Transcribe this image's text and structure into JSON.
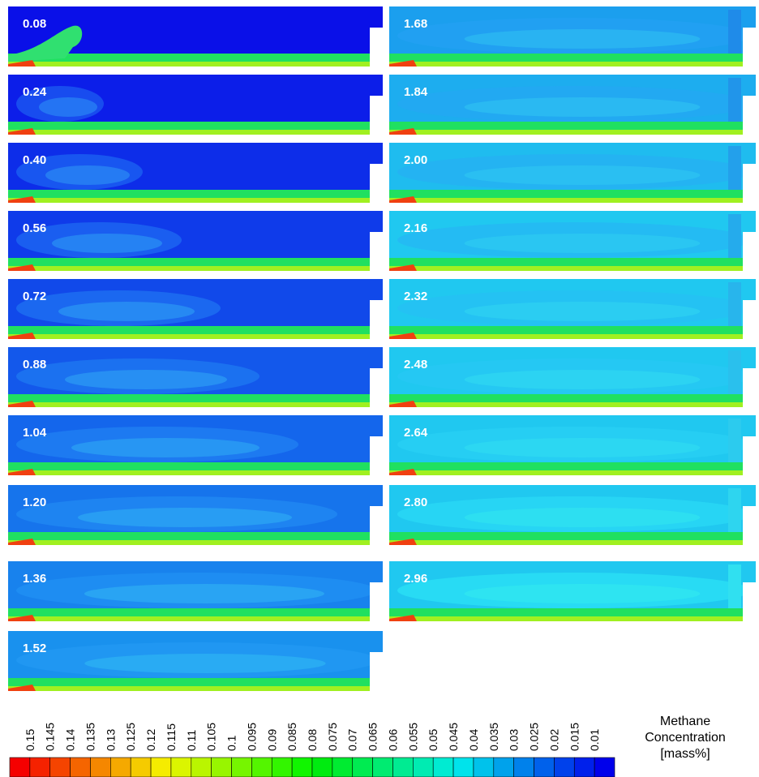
{
  "panels": [
    {
      "time": "0.08"
    },
    {
      "time": "0.24"
    },
    {
      "time": "0.40"
    },
    {
      "time": "0.56"
    },
    {
      "time": "0.72"
    },
    {
      "time": "0.88"
    },
    {
      "time": "1.04"
    },
    {
      "time": "1.20"
    },
    {
      "time": "1.36"
    },
    {
      "time": "1.52"
    },
    {
      "time": "1.68"
    },
    {
      "time": "1.84"
    },
    {
      "time": "2.00"
    },
    {
      "time": "2.16"
    },
    {
      "time": "2.32"
    },
    {
      "time": "2.48"
    },
    {
      "time": "2.64"
    },
    {
      "time": "2.80"
    },
    {
      "time": "2.96"
    }
  ],
  "colorbar": {
    "labels": [
      "0.15",
      "0.145",
      "0.14",
      "0.135",
      "0.13",
      "0.125",
      "0.12",
      "0.115",
      "0.11",
      "0.105",
      "0.1",
      "0.095",
      "0.09",
      "0.085",
      "0.08",
      "0.075",
      "0.07",
      "0.065",
      "0.06",
      "0.055",
      "0.05",
      "0.045",
      "0.04",
      "0.035",
      "0.03",
      "0.025",
      "0.02",
      "0.015",
      "0.01"
    ],
    "title": [
      "Methane",
      "Concentration",
      "[mass%]"
    ]
  }
}
